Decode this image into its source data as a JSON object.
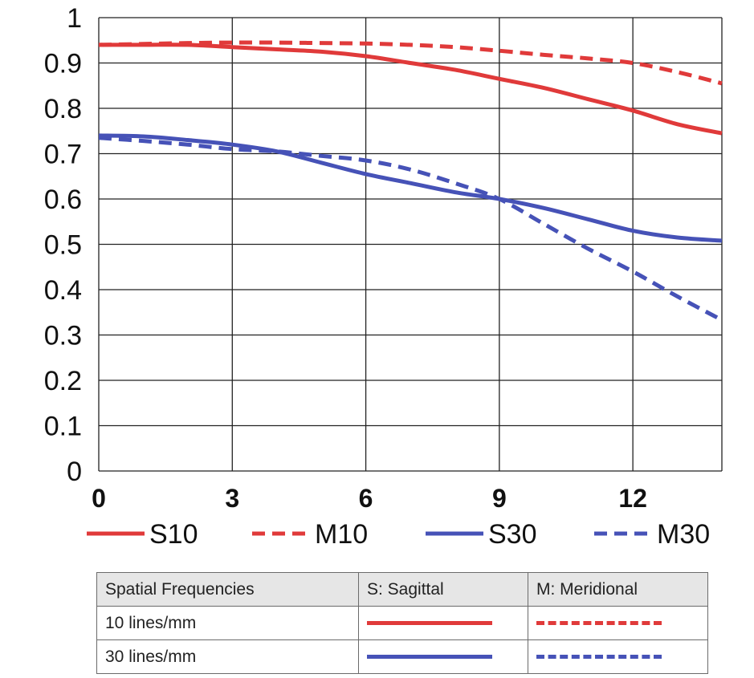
{
  "chart_data": {
    "type": "line",
    "xlim": [
      0,
      14
    ],
    "ylim": [
      0,
      1
    ],
    "x_ticks": [
      "0",
      "3",
      "6",
      "9",
      "12"
    ],
    "y_ticks": [
      "0",
      "0.1",
      "0.2",
      "0.3",
      "0.4",
      "0.5",
      "0.6",
      "0.7",
      "0.8",
      "0.9",
      "1"
    ],
    "grid": true,
    "series": [
      {
        "name": "S10",
        "color": "#e03a3a",
        "style": "solid",
        "x": [
          0,
          1,
          2,
          3,
          4,
          5,
          6,
          7,
          8,
          9,
          10,
          11,
          12,
          13,
          14
        ],
        "y": [
          0.94,
          0.94,
          0.94,
          0.935,
          0.93,
          0.925,
          0.915,
          0.9,
          0.885,
          0.865,
          0.845,
          0.82,
          0.795,
          0.765,
          0.745
        ]
      },
      {
        "name": "M10",
        "color": "#e03a3a",
        "style": "dashed",
        "x": [
          0,
          1,
          2,
          3,
          4,
          5,
          6,
          7,
          8,
          9,
          10,
          11,
          12,
          13,
          14
        ],
        "y": [
          0.94,
          0.942,
          0.944,
          0.945,
          0.945,
          0.944,
          0.943,
          0.94,
          0.935,
          0.927,
          0.918,
          0.91,
          0.9,
          0.88,
          0.855
        ]
      },
      {
        "name": "S30",
        "color": "#4652b7",
        "style": "solid",
        "x": [
          0,
          1,
          2,
          3,
          4,
          5,
          6,
          7,
          8,
          9,
          10,
          11,
          12,
          13,
          14
        ],
        "y": [
          0.74,
          0.738,
          0.73,
          0.72,
          0.705,
          0.68,
          0.655,
          0.635,
          0.615,
          0.6,
          0.58,
          0.555,
          0.53,
          0.515,
          0.508
        ]
      },
      {
        "name": "M30",
        "color": "#4652b7",
        "style": "dashed",
        "x": [
          0,
          1,
          2,
          3,
          4,
          5,
          6,
          7,
          8,
          9,
          10,
          11,
          12,
          13,
          14
        ],
        "y": [
          0.735,
          0.728,
          0.72,
          0.71,
          0.705,
          0.695,
          0.685,
          0.665,
          0.635,
          0.6,
          0.545,
          0.49,
          0.44,
          0.385,
          0.333
        ]
      }
    ]
  },
  "table": {
    "headers": [
      "Spatial Frequencies",
      "S: Sagittal",
      "M: Meridional"
    ],
    "rows": [
      {
        "label": "10 lines/mm",
        "color": "#e03a3a"
      },
      {
        "label": "30 lines/mm",
        "color": "#4652b7"
      }
    ]
  }
}
